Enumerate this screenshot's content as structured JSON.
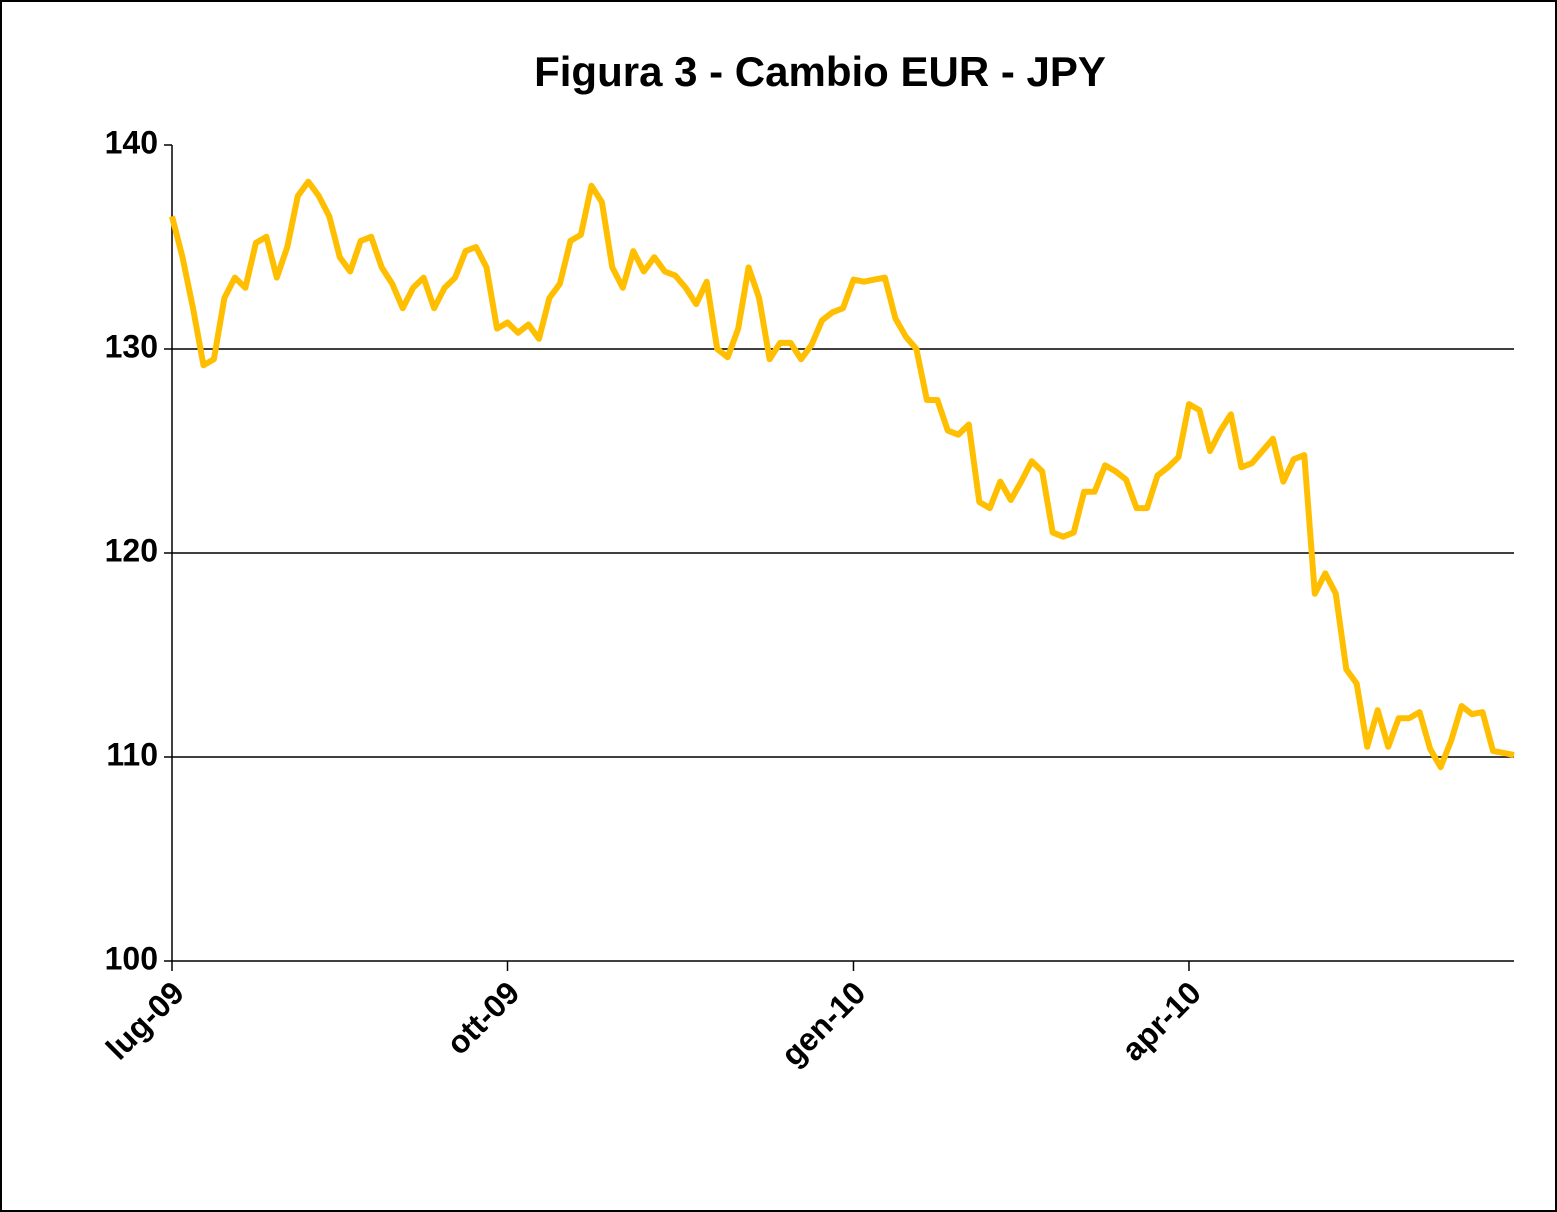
{
  "chart_data": {
    "type": "line",
    "title": "Figura 3 - Cambio EUR - JPY",
    "categories": [
      "lug-09",
      null,
      null,
      null,
      null,
      null,
      null,
      null,
      null,
      null,
      null,
      null,
      null,
      null,
      null,
      null,
      null,
      null,
      null,
      null,
      null,
      null,
      null,
      null,
      null,
      null,
      null,
      null,
      null,
      null,
      null,
      null,
      "ott-09",
      null,
      null,
      null,
      null,
      null,
      null,
      null,
      null,
      null,
      null,
      null,
      null,
      null,
      null,
      null,
      null,
      null,
      null,
      null,
      null,
      null,
      null,
      null,
      null,
      null,
      null,
      null,
      null,
      null,
      null,
      null,
      null,
      "gen-10",
      null,
      null,
      null,
      null,
      null,
      null,
      null,
      null,
      null,
      null,
      null,
      null,
      null,
      null,
      null,
      null,
      null,
      null,
      null,
      null,
      null,
      null,
      null,
      null,
      null,
      null,
      null,
      null,
      null,
      null,
      null,
      "apr-10",
      null,
      null,
      null,
      null,
      null,
      null,
      null,
      null,
      null,
      null,
      null,
      null,
      null,
      null,
      null,
      null,
      null,
      null,
      null,
      null,
      null,
      null,
      null,
      null,
      null,
      null,
      null,
      null,
      null,
      null,
      null
    ],
    "series": [
      {
        "color": "#ffbf00",
        "values": [
          136.5,
          134.5,
          132,
          129.2,
          129.5,
          132.5,
          133.5,
          133,
          135.2,
          135.5,
          133.5,
          135,
          137.5,
          138.2,
          137.5,
          136.5,
          134.5,
          133.8,
          135.3,
          135.5,
          134,
          133.2,
          132,
          133,
          133.5,
          132,
          133,
          133.5,
          134.8,
          135,
          134,
          131,
          131.3,
          130.8,
          131.2,
          130.5,
          132.5,
          133.2,
          135.3,
          135.6,
          138,
          137.2,
          134,
          133,
          134.8,
          133.8,
          134.5,
          133.8,
          133.6,
          133,
          132.2,
          133.3,
          130,
          129.6,
          131,
          134,
          132.5,
          129.5,
          130.3,
          130.3,
          129.5,
          130.2,
          131.4,
          131.8,
          132,
          133.4,
          133.3,
          133.4,
          133.5,
          131.5,
          130.6,
          130,
          127.5,
          127.5,
          126,
          125.8,
          126.3,
          122.5,
          122.2,
          123.5,
          122.6,
          123.5,
          124.5,
          124,
          121,
          120.8,
          121,
          123,
          123,
          124.3,
          124,
          123.6,
          122.2,
          122.2,
          123.8,
          124.2,
          124.7,
          127.3,
          127,
          125,
          126,
          126.8,
          124.2,
          124.4,
          125,
          125.6,
          123.5,
          124.6,
          124.8,
          118,
          119,
          118,
          114.3,
          113.6,
          110.5,
          112.3,
          110.5,
          111.9,
          111.9,
          112.2,
          110.4,
          109.5,
          110.8,
          112.5,
          112.1,
          112.2,
          110.3,
          110.2,
          110.1
        ]
      }
    ],
    "ylim": [
      100,
      140
    ],
    "yticks": [
      100,
      110,
      120,
      130,
      140
    ],
    "grid": true
  }
}
